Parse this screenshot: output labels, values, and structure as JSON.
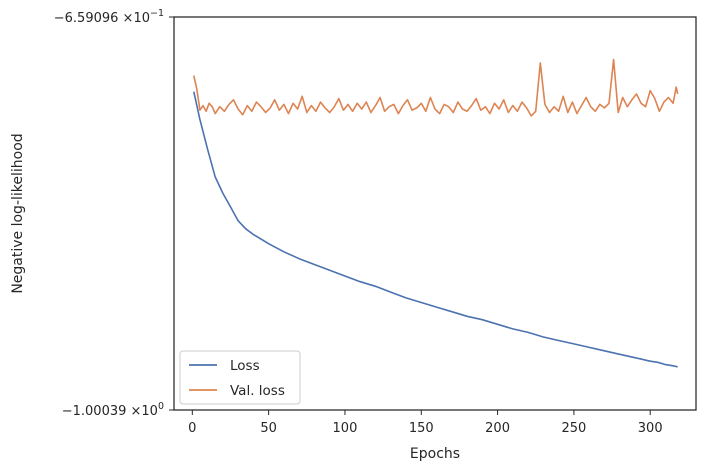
{
  "chart_data": {
    "type": "line",
    "title": "",
    "xlabel": "Epochs",
    "ylabel": "Negative log-likelihood",
    "xlim": [
      -12,
      330
    ],
    "ylim": [
      -1.00039,
      -0.659096
    ],
    "x_ticks": [
      0,
      50,
      100,
      150,
      200,
      250,
      300
    ],
    "y_ticks": [
      {
        "value": -0.659096,
        "mantissa": "−6.59096",
        "exponent": "−1"
      },
      {
        "value": -1.00039,
        "mantissa": "−1.00039",
        "exponent": "0"
      }
    ],
    "y_tick_times": "×10",
    "grid": false,
    "legend_position": "lower-left",
    "series": [
      {
        "name": "Loss",
        "color": "#4c72b0",
        "x": [
          1,
          5,
          10,
          15,
          20,
          25,
          30,
          35,
          40,
          50,
          60,
          70,
          80,
          90,
          100,
          110,
          120,
          130,
          140,
          150,
          160,
          170,
          180,
          190,
          200,
          210,
          220,
          230,
          240,
          250,
          260,
          270,
          280,
          290,
          300,
          305,
          310,
          315,
          318
        ],
        "y": [
          -0.724,
          -0.748,
          -0.774,
          -0.798,
          -0.812,
          -0.824,
          -0.836,
          -0.843,
          -0.848,
          -0.856,
          -0.863,
          -0.869,
          -0.874,
          -0.879,
          -0.884,
          -0.889,
          -0.893,
          -0.898,
          -0.903,
          -0.907,
          -0.911,
          -0.915,
          -0.919,
          -0.922,
          -0.926,
          -0.93,
          -0.933,
          -0.937,
          -0.94,
          -0.943,
          -0.946,
          -0.949,
          -0.952,
          -0.955,
          -0.958,
          -0.959,
          -0.961,
          -0.962,
          -0.963
        ]
      },
      {
        "name": "Val. loss",
        "color": "#dd8452",
        "x": [
          1,
          3,
          5,
          7,
          9,
          11,
          13,
          15,
          18,
          21,
          24,
          27,
          30,
          33,
          36,
          39,
          42,
          45,
          48,
          51,
          54,
          57,
          60,
          63,
          66,
          69,
          72,
          75,
          78,
          81,
          84,
          87,
          90,
          93,
          96,
          99,
          102,
          105,
          108,
          111,
          114,
          117,
          120,
          123,
          126,
          129,
          132,
          135,
          138,
          141,
          144,
          147,
          150,
          153,
          156,
          159,
          162,
          165,
          168,
          171,
          174,
          177,
          180,
          183,
          186,
          189,
          192,
          195,
          198,
          201,
          204,
          207,
          210,
          213,
          216,
          219,
          222,
          225,
          228,
          231,
          234,
          237,
          240,
          243,
          246,
          249,
          252,
          255,
          258,
          261,
          264,
          267,
          270,
          273,
          276,
          279,
          282,
          285,
          288,
          291,
          294,
          297,
          300,
          303,
          306,
          309,
          312,
          315,
          317,
          318
        ],
        "y": [
          -0.71,
          -0.722,
          -0.74,
          -0.736,
          -0.741,
          -0.734,
          -0.737,
          -0.743,
          -0.737,
          -0.741,
          -0.735,
          -0.731,
          -0.739,
          -0.744,
          -0.736,
          -0.741,
          -0.733,
          -0.737,
          -0.742,
          -0.738,
          -0.731,
          -0.74,
          -0.735,
          -0.743,
          -0.734,
          -0.739,
          -0.728,
          -0.742,
          -0.736,
          -0.741,
          -0.733,
          -0.738,
          -0.742,
          -0.737,
          -0.73,
          -0.74,
          -0.735,
          -0.741,
          -0.734,
          -0.739,
          -0.733,
          -0.742,
          -0.736,
          -0.729,
          -0.741,
          -0.737,
          -0.735,
          -0.743,
          -0.736,
          -0.731,
          -0.74,
          -0.738,
          -0.734,
          -0.741,
          -0.729,
          -0.739,
          -0.743,
          -0.735,
          -0.737,
          -0.742,
          -0.733,
          -0.739,
          -0.741,
          -0.736,
          -0.73,
          -0.74,
          -0.737,
          -0.743,
          -0.734,
          -0.739,
          -0.731,
          -0.742,
          -0.736,
          -0.741,
          -0.733,
          -0.738,
          -0.745,
          -0.741,
          -0.699,
          -0.735,
          -0.742,
          -0.737,
          -0.741,
          -0.728,
          -0.742,
          -0.733,
          -0.743,
          -0.736,
          -0.729,
          -0.737,
          -0.741,
          -0.735,
          -0.738,
          -0.734,
          -0.696,
          -0.742,
          -0.729,
          -0.737,
          -0.731,
          -0.726,
          -0.734,
          -0.737,
          -0.723,
          -0.73,
          -0.741,
          -0.733,
          -0.729,
          -0.734,
          -0.72,
          -0.726
        ]
      }
    ]
  }
}
